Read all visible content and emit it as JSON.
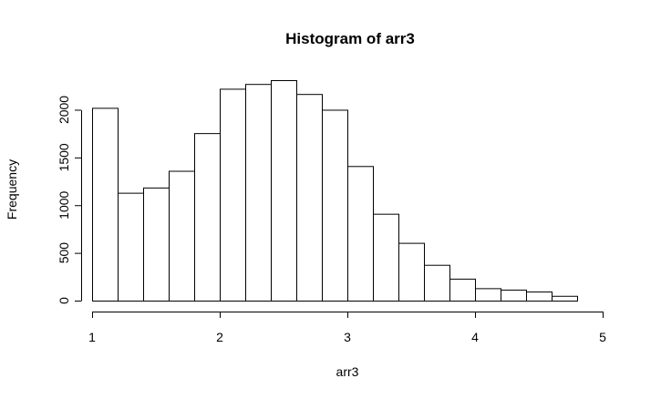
{
  "chart_data": {
    "type": "bar",
    "title": "Histogram of arr3",
    "xlabel": "arr3",
    "ylabel": "Frequency",
    "bin_edges": [
      1.0,
      1.2,
      1.4,
      1.6,
      1.8,
      2.0,
      2.2,
      2.4,
      2.6,
      2.8,
      3.0,
      3.2,
      3.4,
      3.6,
      3.8,
      4.0,
      4.2,
      4.4,
      4.6,
      4.8
    ],
    "values": [
      2020,
      1130,
      1185,
      1360,
      1755,
      2220,
      2270,
      2310,
      2165,
      2000,
      1410,
      910,
      605,
      375,
      230,
      130,
      115,
      95,
      50
    ],
    "xticks": [
      "1",
      "2",
      "3",
      "4",
      "5"
    ],
    "yticks": [
      "0",
      "500",
      "1000",
      "1500",
      "2000"
    ],
    "xlim": [
      1,
      5
    ],
    "ylim": [
      0,
      2310
    ],
    "grid": false
  }
}
